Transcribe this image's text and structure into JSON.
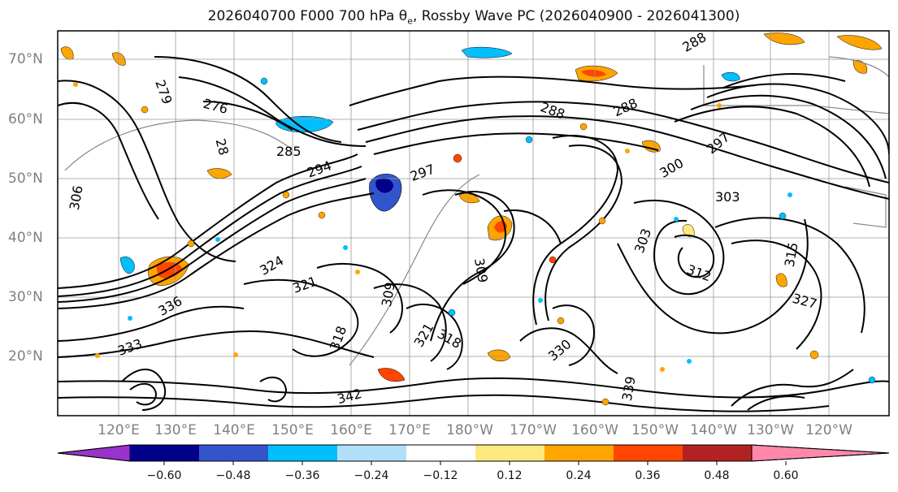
{
  "title": {
    "prefix": "2026040700 F000 700 hPa ",
    "symbol": "θ",
    "symbol_sub": "e",
    "suffix": ", Rossby Wave PC (2026040900 - 2026041300)"
  },
  "map": {
    "latitude_labels": [
      "70°N",
      "60°N",
      "50°N",
      "40°N",
      "30°N",
      "20°N"
    ],
    "longitude_labels": [
      "120°E",
      "130°E",
      "140°E",
      "150°E",
      "160°E",
      "170°E",
      "180°W",
      "170°W",
      "160°W",
      "150°W",
      "140°W",
      "130°W",
      "120°W"
    ],
    "contour_labels": [
      "279",
      "276",
      "28",
      "285",
      "294",
      "297",
      "306",
      "288",
      "288",
      "288",
      "297",
      "300",
      "303",
      "303",
      "309",
      "309",
      "312",
      "315",
      "318",
      "318",
      "321",
      "321",
      "324",
      "327",
      "330",
      "333",
      "336",
      "339",
      "342"
    ]
  },
  "colorbar": {
    "ticks": [
      "−0.60",
      "−0.48",
      "−0.36",
      "−0.24",
      "−0.12",
      "0.12",
      "0.24",
      "0.36",
      "0.48",
      "0.60"
    ],
    "colors": [
      "#9933cc",
      "#00008b",
      "#3355cc",
      "#00bfff",
      "#b0e0f8",
      "#ffffff",
      "#ffe97f",
      "#ffa500",
      "#ff4500",
      "#b22222",
      "#ff88aa"
    ]
  }
}
